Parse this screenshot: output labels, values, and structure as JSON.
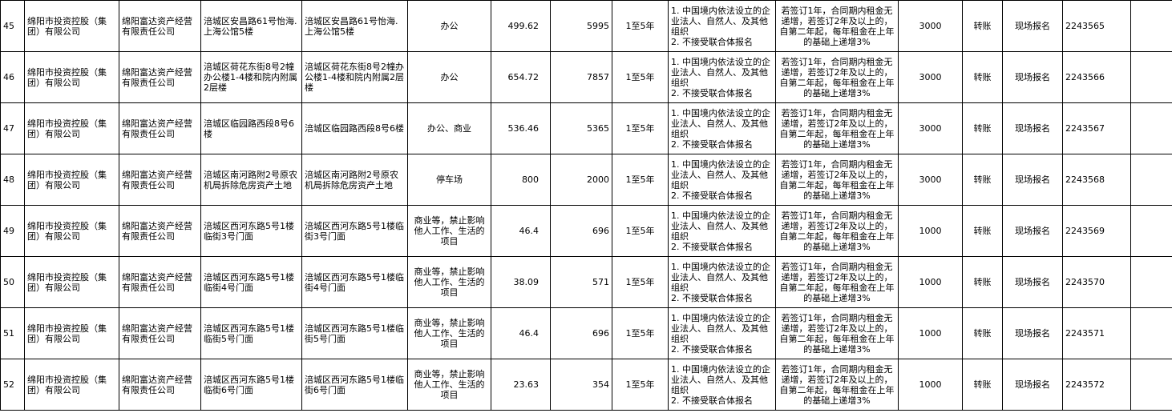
{
  "rows": [
    [
      "45",
      "绵阳市投资控股（集团）有限公司",
      "绵阳富达资产经营有限责任公司",
      "涪城区安昌路61号怡海.上海公馆5楼",
      "涪城区安昌路61号怡海.上海公馆5楼",
      "办公",
      "499.62",
      "5995",
      "1至5年",
      "1. 中国境内依法设立的企业法人、自然人、及其他组织\n2. 不接受联合体报名",
      "若签订1年，合同期内租金无递增，若签订2年及以上的，自第二年起，每年租金在上年的基础上递增3%",
      "3000",
      "转账",
      "现场报名",
      "2243565"
    ],
    [
      "46",
      "绵阳市投资控股（集团）有限公司",
      "绵阳富达资产经营有限责任公司",
      "涪城区荷花东街8号2幢办公楼1-4楼和院内附属2层楼",
      "涪城区荷花东街8号2幢办公楼1-4楼和院内附属2层楼",
      "办公",
      "654.72",
      "7857",
      "1至5年",
      "1. 中国境内依法设立的企业法人、自然人、及其他组织\n2. 不接受联合体报名",
      "若签订1年，合同期内租金无递增，若签订2年及以上的，自第二年起，每年租金在上年的基础上递增3%",
      "3000",
      "转账",
      "现场报名",
      "2243566"
    ],
    [
      "47",
      "绵阳市投资控股（集团）有限公司",
      "绵阳富达资产经营有限责任公司",
      "涪城区临园路西段8号6楼",
      "涪城区临园路西段8号6楼",
      "办公、商业",
      "536.46",
      "5365",
      "1至5年",
      "1. 中国境内依法设立的企业法人、自然人、及其他组织\n2. 不接受联合体报名",
      "若签订1年，合同期内租金无递增，若签订2年及以上的，自第二年起，每年租金在上年的基础上递增3%",
      "3000",
      "转账",
      "现场报名",
      "2243567"
    ],
    [
      "48",
      "绵阳市投资控股（集团）有限公司",
      "绵阳富达资产经营有限责任公司",
      "涪城区南河路附2号原农机局拆除危房资产土地",
      "涪城区南河路附2号原农机局拆除危房资产土地",
      "停车场",
      "800",
      "2000",
      "1至5年",
      "1. 中国境内依法设立的企业法人、自然人、及其他组织\n2. 不接受联合体报名",
      "若签订1年，合同期内租金无递增，若签订2年及以上的，自第二年起，每年租金在上年的基础上递增3%",
      "3000",
      "转账",
      "现场报名",
      "2243568"
    ],
    [
      "49",
      "绵阳市投资控股（集团）有限公司",
      "绵阳富达资产经营有限责任公司",
      "涪城区西河东路5号1楼临街3号门面",
      "涪城区西河东路5号1楼临街3号门面",
      "商业等，禁止影响他人工作、生活的项目",
      "46.4",
      "696",
      "1至5年",
      "1. 中国境内依法设立的企业法人、自然人、及其他组织\n2. 不接受联合体报名",
      "若签订1年，合同期内租金无递增，若签订2年及以上的，自第二年起，每年租金在上年的基础上递增3%",
      "1000",
      "转账",
      "现场报名",
      "2243569"
    ],
    [
      "50",
      "绵阳市投资控股（集团）有限公司",
      "绵阳富达资产经营有限责任公司",
      "涪城区西河东路5号1楼临街4号门面",
      "涪城区西河东路5号1楼临街4号门面",
      "商业等，禁止影响他人工作、生活的项目",
      "38.09",
      "571",
      "1至5年",
      "1. 中国境内依法设立的企业法人、自然人、及其他组织\n2. 不接受联合体报名",
      "若签订1年，合同期内租金无递增，若签订2年及以上的，自第二年起，每年租金在上年的基础上递增3%",
      "1000",
      "转账",
      "现场报名",
      "2243570"
    ],
    [
      "51",
      "绵阳市投资控股（集团）有限公司",
      "绵阳富达资产经营有限责任公司",
      "涪城区西河东路5号1楼临街5号门面",
      "涪城区西河东路5号1楼临街5号门面",
      "商业等，禁止影响他人工作、生活的项目",
      "46.4",
      "696",
      "1至5年",
      "1. 中国境内依法设立的企业法人、自然人、及其他组织\n2. 不接受联合体报名",
      "若签订1年，合同期内租金无递增，若签订2年及以上的，自第二年起，每年租金在上年的基础上递增3%",
      "1000",
      "转账",
      "现场报名",
      "2243571"
    ],
    [
      "52",
      "绵阳市投资控股（集团）有限公司",
      "绵阳富达资产经营有限责任公司",
      "涪城区西河东路5号1楼临街6号门面",
      "涪城区西河东路5号1楼临街6号门面",
      "商业等，禁止影响他人工作、生活的项目",
      "23.63",
      "354",
      "1至5年",
      "1. 中国境内依法设立的企业法人、自然人、及其他组织\n2. 不接受联合体报名",
      "若签订1年，合同期内租金无递增，若签订2年及以上的，自第二年起，每年租金在上年的基础上递增3%",
      "1000",
      "转账",
      "现场报名",
      "2243572"
    ]
  ]
}
